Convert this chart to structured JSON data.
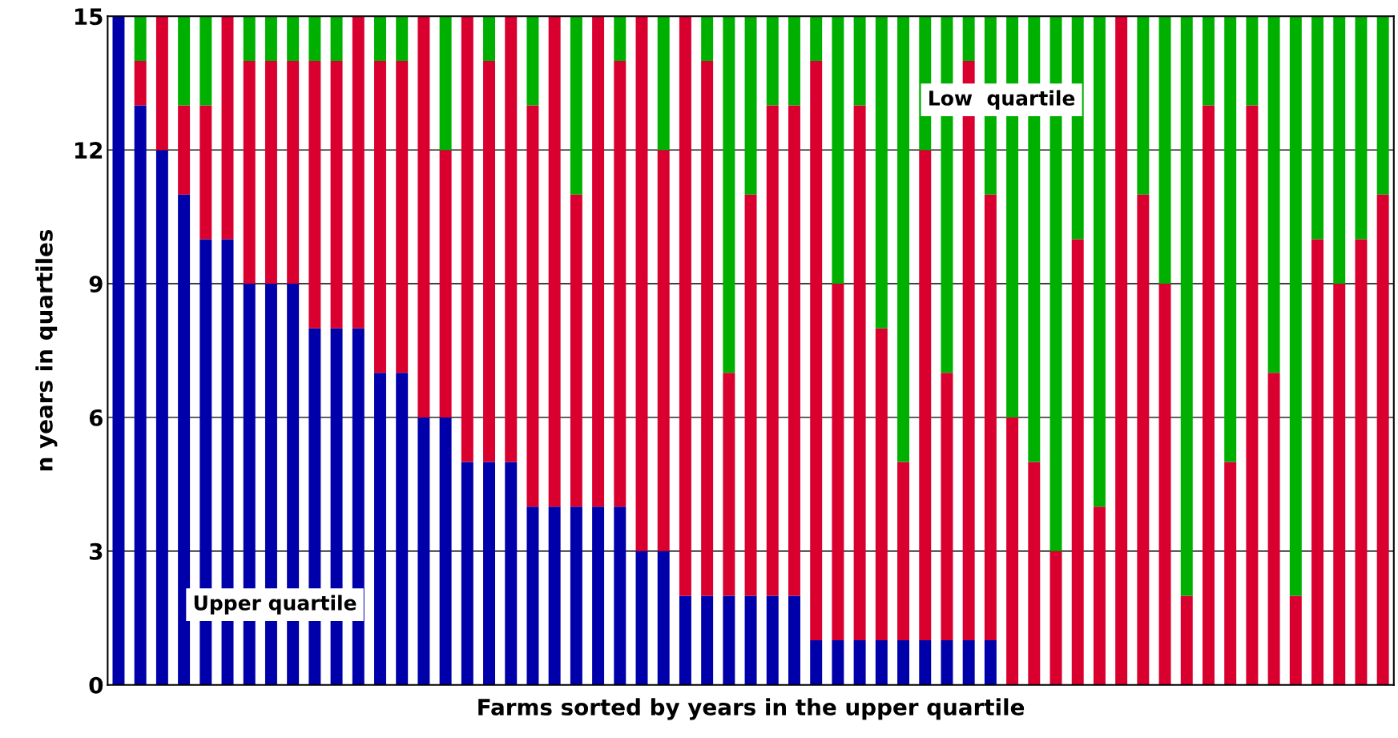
{
  "chart_data": {
    "type": "bar",
    "stacked": true,
    "xlabel": "Farms sorted by years in the upper quartile",
    "ylabel": "n years in quartiles",
    "categories": [
      null,
      null,
      null,
      null,
      null,
      null,
      null,
      null,
      null,
      null,
      null,
      null,
      null,
      null,
      null,
      null,
      null,
      null,
      null,
      null,
      null,
      null,
      null,
      null,
      null,
      null,
      null,
      null,
      null,
      null,
      null,
      null,
      null,
      null,
      null,
      null,
      null,
      null,
      null,
      null,
      null,
      null,
      null,
      null,
      null,
      null,
      null,
      null,
      null,
      null,
      null,
      null,
      null,
      null,
      null,
      null,
      null,
      null,
      null
    ],
    "series": [
      {
        "color": "#0000aa",
        "values": [
          15,
          13,
          12,
          11,
          10,
          10,
          9,
          9,
          9,
          8,
          8,
          8,
          7,
          7,
          6,
          6,
          5,
          5,
          5,
          4,
          4,
          4,
          4,
          4,
          3,
          3,
          2,
          2,
          2,
          2,
          2,
          2,
          1,
          1,
          1,
          1,
          1,
          1,
          1,
          1,
          1,
          0,
          0,
          0,
          0,
          0,
          0,
          0,
          0,
          0,
          0,
          0,
          0,
          0,
          0,
          0,
          0,
          0,
          0
        ]
      },
      {
        "color": "#d90030",
        "values": [
          0,
          1,
          3,
          2,
          3,
          5,
          5,
          5,
          5,
          6,
          6,
          7,
          7,
          7,
          9,
          6,
          10,
          9,
          10,
          9,
          11,
          7,
          11,
          10,
          12,
          9,
          13,
          12,
          5,
          9,
          11,
          11,
          13,
          8,
          12,
          7,
          4,
          11,
          6,
          13,
          10,
          6,
          5,
          3,
          10,
          4,
          15,
          11,
          9,
          2,
          13,
          5,
          13,
          7,
          2,
          10,
          9,
          10,
          11
        ]
      },
      {
        "color": "#00b000",
        "values": [
          0,
          1,
          0,
          2,
          2,
          0,
          1,
          1,
          1,
          1,
          1,
          0,
          1,
          1,
          0,
          3,
          0,
          1,
          0,
          2,
          0,
          4,
          0,
          1,
          0,
          3,
          0,
          1,
          8,
          4,
          2,
          2,
          1,
          6,
          2,
          7,
          10,
          3,
          8,
          1,
          4,
          9,
          10,
          12,
          5,
          11,
          0,
          4,
          6,
          13,
          2,
          10,
          2,
          8,
          13,
          5,
          6,
          5,
          4
        ]
      }
    ],
    "ylim": [
      0,
      15
    ],
    "yticks": [
      0,
      3,
      6,
      9,
      12,
      15
    ],
    "grid": "y",
    "tick_labels": "y",
    "annotations": [
      "Upper quartile",
      "Low  quartile"
    ]
  }
}
